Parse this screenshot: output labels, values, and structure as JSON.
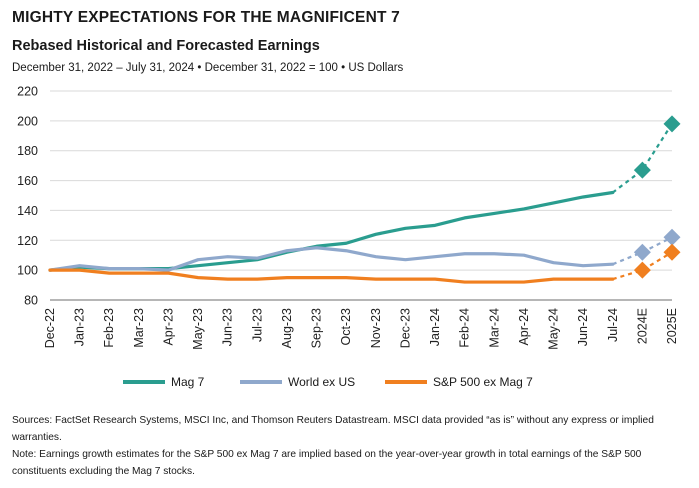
{
  "header": {
    "title": "MIGHTY EXPECTATIONS FOR THE MAGNIFICENT 7",
    "subtitle": "Rebased Historical and Forecasted Earnings",
    "subsubtitle": "December 31, 2022 – July 31, 2024 • December 31, 2022 = 100 • US Dollars"
  },
  "notes": {
    "sources": "Sources: FactSet Research Systems, MSCI Inc, and Thomson Reuters Datastream. MSCI data provided “as is” without any express or implied warranties.",
    "note": "Note: Earnings growth estimates for the S&P 500 ex Mag 7 are implied based on the year-over-year growth in total earnings of the S&P 500 constituents excluding the Mag 7 stocks."
  },
  "chart_data": {
    "type": "line",
    "title": "",
    "xlabel": "",
    "ylabel": "",
    "ylim": [
      80,
      220
    ],
    "yticks": [
      80,
      100,
      120,
      140,
      160,
      180,
      200,
      220
    ],
    "grid": true,
    "legend_position": "bottom",
    "categories": [
      "Dec-22",
      "Jan-23",
      "Feb-23",
      "Mar-23",
      "Apr-23",
      "May-23",
      "Jun-23",
      "Jul-23",
      "Aug-23",
      "Sep-23",
      "Oct-23",
      "Nov-23",
      "Dec-23",
      "Jan-24",
      "Feb-24",
      "Mar-24",
      "Apr-24",
      "May-24",
      "Jun-24",
      "Jul-24",
      "2024E",
      "2025E"
    ],
    "historical_count": 20,
    "series": [
      {
        "name": "Mag 7",
        "color": "#2a9d8f",
        "values": [
          100,
          102,
          101,
          101,
          101,
          103,
          105,
          107,
          112,
          116,
          118,
          124,
          128,
          130,
          135,
          138,
          141,
          145,
          149,
          152,
          167,
          198
        ]
      },
      {
        "name": "World ex US",
        "color": "#8fa8cc",
        "values": [
          100,
          103,
          101,
          101,
          100,
          107,
          109,
          108,
          113,
          115,
          113,
          109,
          107,
          109,
          111,
          111,
          110,
          105,
          103,
          104,
          112,
          122
        ]
      },
      {
        "name": "S&P 500 ex Mag 7",
        "color": "#f07f1f",
        "values": [
          100,
          100,
          98,
          98,
          98,
          95,
          94,
          94,
          95,
          95,
          95,
          94,
          94,
          94,
          92,
          92,
          92,
          94,
          94,
          94,
          100,
          112
        ]
      }
    ]
  }
}
